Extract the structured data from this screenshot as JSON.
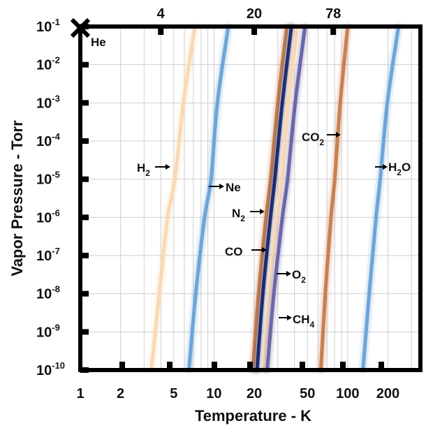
{
  "chart_data": {
    "type": "line",
    "title": "",
    "xlabel": "Temperature - K",
    "ylabel": "Vapor Pressure - Torr",
    "x_scale": "log",
    "y_scale": "log",
    "xlim": [
      1,
      350
    ],
    "ylim": [
      1e-10,
      0.1
    ],
    "grid": true,
    "x_ticks": [
      "1",
      "2",
      "5",
      "10",
      "20",
      "50",
      "100",
      "200"
    ],
    "y_tick_exponents": [
      "-1",
      "-2",
      "-3",
      "-4",
      "-5",
      "-6",
      "-7",
      "-8",
      "-9",
      "-10"
    ],
    "y_tick_base": "10",
    "top_ticks": [
      "4",
      "20",
      "78"
    ],
    "series": [
      {
        "name": "He",
        "color": "#1a1a1a",
        "points": [
          [
            1,
            0.1
          ]
        ]
      },
      {
        "name": "H2",
        "color": "#fbd8b4",
        "points": [
          [
            3.4,
            1e-10
          ],
          [
            3.9,
            1e-08
          ],
          [
            4.5,
            1e-06
          ],
          [
            5.1,
            1e-05
          ],
          [
            5.9,
            0.001
          ],
          [
            7.2,
            0.1
          ]
        ]
      },
      {
        "name": "Ne",
        "color": "#6ea4d8",
        "points": [
          [
            6.5,
            1e-10
          ],
          [
            7.3,
            1e-08
          ],
          [
            8.5,
            1e-06
          ],
          [
            9.5,
            1e-05
          ],
          [
            10.6,
            0.001
          ],
          [
            12.8,
            0.1
          ]
        ]
      },
      {
        "name": "N2",
        "color": "#c8804f",
        "points": [
          [
            19.5,
            1e-10
          ],
          [
            21.5,
            1e-08
          ],
          [
            24.5,
            1e-06
          ],
          [
            26.5,
            1e-05
          ],
          [
            30,
            0.001
          ],
          [
            35,
            0.1
          ]
        ]
      },
      {
        "name": "CO",
        "color": "#1c2a6e",
        "points": [
          [
            21,
            1e-10
          ],
          [
            23.2,
            1e-08
          ],
          [
            26.5,
            1e-06
          ],
          [
            28.5,
            1e-05
          ],
          [
            32.5,
            0.001
          ],
          [
            38,
            0.1
          ]
        ]
      },
      {
        "name": "O2",
        "color": "#fbd8b4",
        "points": [
          [
            23.5,
            1e-10
          ],
          [
            26,
            1e-08
          ],
          [
            29.5,
            1e-06
          ],
          [
            32,
            1e-05
          ],
          [
            36,
            0.001
          ],
          [
            42,
            0.1
          ]
        ]
      },
      {
        "name": "CH4",
        "color": "#6a67a8",
        "points": [
          [
            25,
            1e-10
          ],
          [
            28,
            1e-08
          ],
          [
            32.5,
            1e-06
          ],
          [
            35.5,
            1e-05
          ],
          [
            40.5,
            0.001
          ],
          [
            48,
            0.1
          ]
        ]
      },
      {
        "name": "CO2",
        "color": "#c8804f",
        "points": [
          [
            63,
            1e-10
          ],
          [
            68,
            1e-08
          ],
          [
            75,
            1e-06
          ],
          [
            80,
            1e-05
          ],
          [
            88,
            0.001
          ],
          [
            100,
            0.1
          ]
        ]
      },
      {
        "name": "H2O",
        "color": "#6ea4d8",
        "points": [
          [
            130,
            1e-10
          ],
          [
            145,
            1e-08
          ],
          [
            163,
            1e-06
          ],
          [
            175,
            1e-05
          ],
          [
            198,
            0.001
          ],
          [
            240,
            0.1
          ]
        ]
      }
    ],
    "annotations": [
      {
        "label": "He",
        "base": "He",
        "sub": ""
      },
      {
        "label": "H2",
        "base": "H",
        "sub": "2"
      },
      {
        "label": "Ne",
        "base": "Ne",
        "sub": ""
      },
      {
        "label": "N2",
        "base": "N",
        "sub": "2"
      },
      {
        "label": "CO",
        "base": "CO",
        "sub": ""
      },
      {
        "label": "O2",
        "base": "O",
        "sub": "2"
      },
      {
        "label": "CH4",
        "base": "CH",
        "sub": "4"
      },
      {
        "label": "CO2",
        "base": "CO",
        "sub": "2"
      },
      {
        "label": "H2O",
        "base": "H",
        "sub": "2",
        "tail": "O"
      }
    ]
  }
}
